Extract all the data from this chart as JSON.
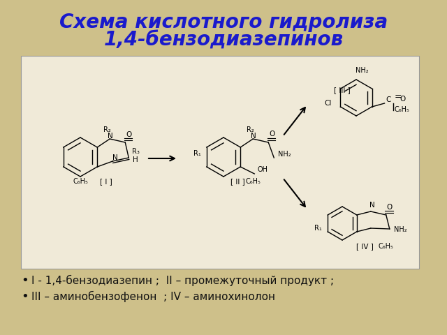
{
  "title_line1": "Схема кислотного гидролиза",
  "title_line2": "1,4-бензодиазепинов",
  "title_color": "#1a1acc",
  "title_fontsize": 20,
  "title_fontstyle": "italic",
  "title_fontweight": "bold",
  "bg_color": "#cec08a",
  "paper_color": "#f0ead8",
  "bullet1": "I - 1,4-бензодиазепин ;  II – промежуточный продукт ;",
  "bullet2": "III – аминобензофенон  ; IV – аминохинолон",
  "bullet_fontsize": 11,
  "bullet_color": "#111111",
  "fig_width": 6.4,
  "fig_height": 4.8,
  "dpi": 100
}
